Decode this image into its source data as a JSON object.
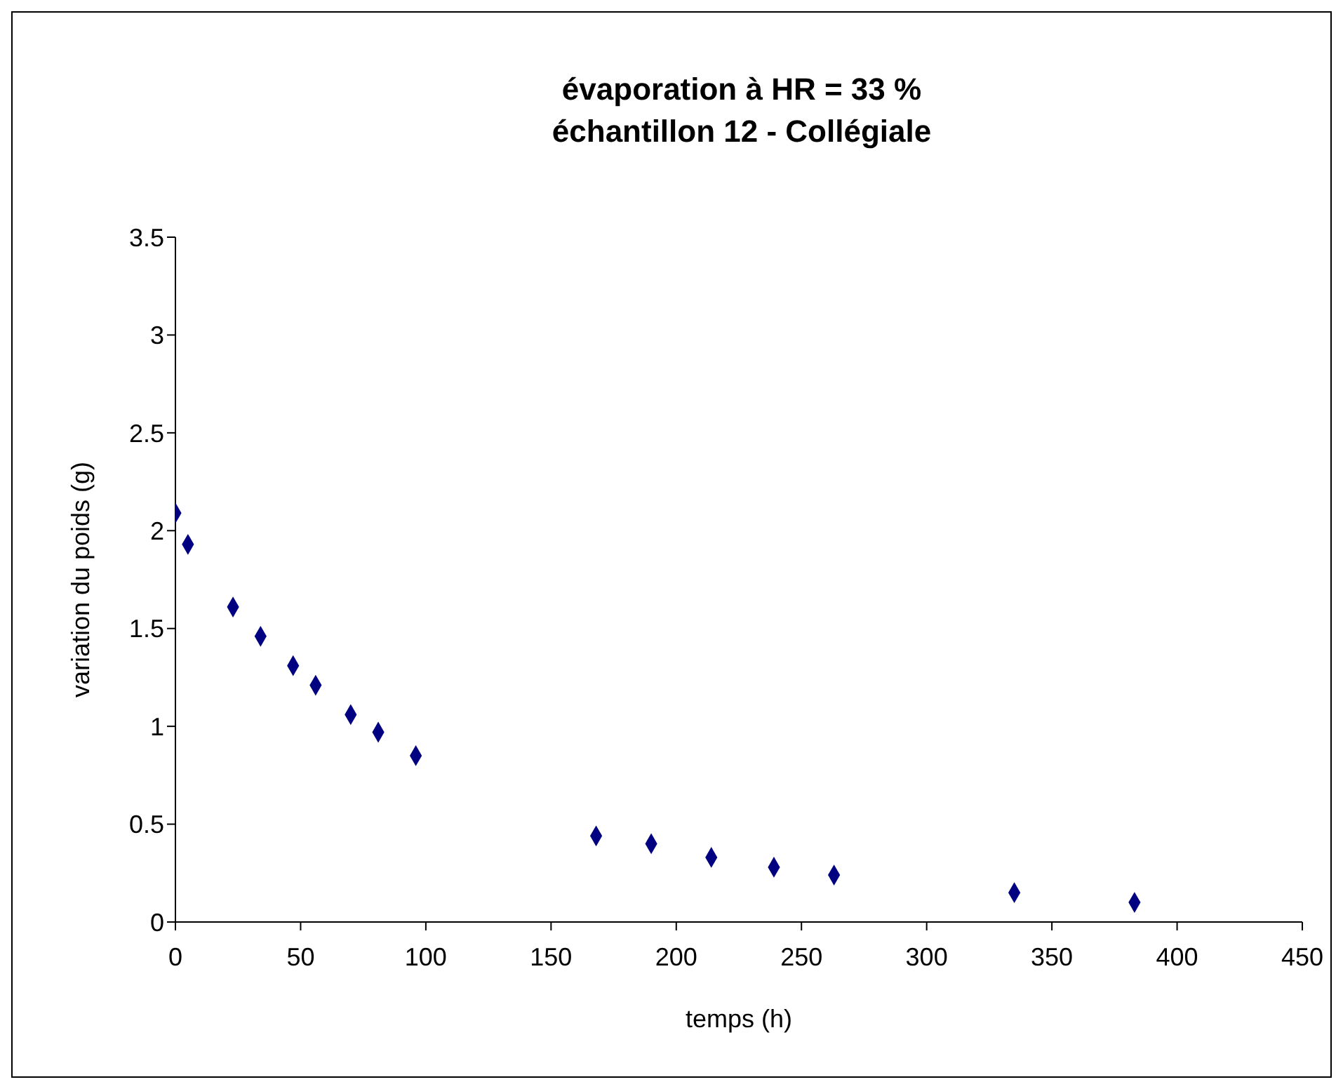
{
  "chart_data": {
    "type": "scatter",
    "title": "évaporation à HR = 33 %\néchantillon 12 - Collégiale",
    "xlabel": "temps (h)",
    "ylabel": "variation du poids (g)",
    "x": [
      0,
      5,
      23,
      34,
      47,
      56,
      70,
      81,
      96,
      168,
      190,
      214,
      239,
      263,
      335,
      383
    ],
    "series": [
      {
        "color": "#000080",
        "values": [
          2.09,
          1.93,
          1.61,
          1.46,
          1.31,
          1.21,
          1.06,
          0.97,
          0.85,
          0.44,
          0.4,
          0.33,
          0.28,
          0.24,
          0.15,
          0.1
        ]
      }
    ],
    "xlim": [
      0,
      450
    ],
    "xticks": [
      0,
      50,
      100,
      150,
      200,
      250,
      300,
      350,
      400,
      450
    ],
    "ylim": [
      0,
      3.5
    ],
    "yticks": [
      0,
      0.5,
      1,
      1.5,
      2,
      2.5,
      3,
      3.5
    ],
    "grid": false,
    "marker": "diamond"
  }
}
